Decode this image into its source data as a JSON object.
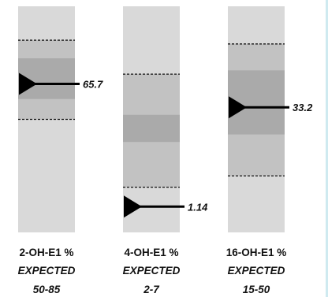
{
  "chart_data": {
    "type": "bar",
    "bars": [
      {
        "name": "2-OH-E1 %",
        "expected_label": "EXPECTED",
        "expected_range_text": "50-85",
        "expected_range": [
          50,
          85
        ],
        "value": 65.7,
        "value_label": "65.7",
        "scale": [
          0,
          100
        ],
        "band": [
          59,
          77
        ]
      },
      {
        "name": "4-OH-E1 %",
        "expected_label": "EXPECTED",
        "expected_range_text": "2-7",
        "expected_range": [
          2,
          7
        ],
        "value": 1.14,
        "value_label": "1.14",
        "scale": [
          0,
          10
        ],
        "band": [
          4,
          5.2
        ]
      },
      {
        "name": "16-OH-E1 %",
        "expected_label": "EXPECTED",
        "expected_range_text": "15-50",
        "expected_range": [
          15,
          50
        ],
        "value": 33.2,
        "value_label": "33.2",
        "scale": [
          0,
          60
        ],
        "band": [
          26,
          43
        ]
      }
    ],
    "colors": {
      "track": "#d9d9d9",
      "range": "#c2c2c2",
      "band": "#aaaaaa",
      "marker": "#000000"
    }
  }
}
